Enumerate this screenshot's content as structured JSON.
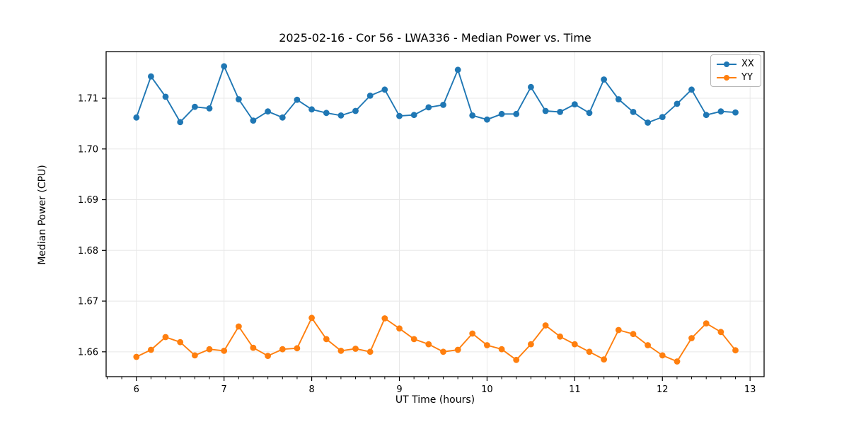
{
  "chart_data": {
    "type": "line",
    "title": "2025-02-16 - Cor 56 - LWA336 - Median Power vs. Time",
    "xlabel": "UT Time (hours)",
    "ylabel": "Median Power (CPU)",
    "xlim": [
      5.655,
      13.16
    ],
    "ylim": [
      1.6551,
      1.7192
    ],
    "x_ticks": [
      6,
      7,
      8,
      9,
      10,
      11,
      12,
      13
    ],
    "x_tick_labels": [
      "6",
      "7",
      "8",
      "9",
      "10",
      "11",
      "12",
      "13"
    ],
    "x_minor_step": 0.166667,
    "y_ticks": [
      1.66,
      1.67,
      1.68,
      1.69,
      1.7,
      1.71
    ],
    "y_tick_labels": [
      "1.66",
      "1.67",
      "1.68",
      "1.69",
      "1.70",
      "1.71"
    ],
    "grid": true,
    "grid_color": "#e8e8e8",
    "legend_position": "upper right",
    "x": [
      6.0,
      6.167,
      6.333,
      6.5,
      6.667,
      6.833,
      7.0,
      7.167,
      7.333,
      7.5,
      7.667,
      7.833,
      8.0,
      8.167,
      8.333,
      8.5,
      8.667,
      8.833,
      9.0,
      9.167,
      9.333,
      9.5,
      9.667,
      9.833,
      10.0,
      10.167,
      10.333,
      10.5,
      10.667,
      10.833,
      11.0,
      11.167,
      11.333,
      11.5,
      11.667,
      11.833,
      12.0,
      12.167,
      12.333,
      12.5,
      12.667,
      12.833
    ],
    "series": [
      {
        "name": "XX",
        "color": "#1f77b4",
        "values": [
          1.7062,
          1.7143,
          1.7103,
          1.7053,
          1.7083,
          1.708,
          1.7163,
          1.7098,
          1.7056,
          1.7074,
          1.7062,
          1.7097,
          1.7078,
          1.7071,
          1.7066,
          1.7075,
          1.7105,
          1.7117,
          1.7065,
          1.7067,
          1.7082,
          1.7087,
          1.7156,
          1.7066,
          1.7058,
          1.7069,
          1.7069,
          1.7122,
          1.7075,
          1.7073,
          1.7088,
          1.7071,
          1.7137,
          1.7098,
          1.7073,
          1.7052,
          1.7063,
          1.7089,
          1.7117,
          1.7067,
          1.7074,
          1.7072
        ]
      },
      {
        "name": "YY",
        "color": "#ff7f0e",
        "values": [
          1.659,
          1.6604,
          1.6629,
          1.6619,
          1.6593,
          1.6605,
          1.6602,
          1.665,
          1.6608,
          1.6592,
          1.6605,
          1.6607,
          1.6667,
          1.6625,
          1.6602,
          1.6606,
          1.66,
          1.6666,
          1.6646,
          1.6625,
          1.6615,
          1.66,
          1.6604,
          1.6636,
          1.6613,
          1.6605,
          1.6584,
          1.6615,
          1.6652,
          1.663,
          1.6615,
          1.66,
          1.6585,
          1.6643,
          1.6635,
          1.6613,
          1.6593,
          1.6581,
          1.6627,
          1.6656,
          1.6639,
          1.6603
        ]
      }
    ]
  }
}
